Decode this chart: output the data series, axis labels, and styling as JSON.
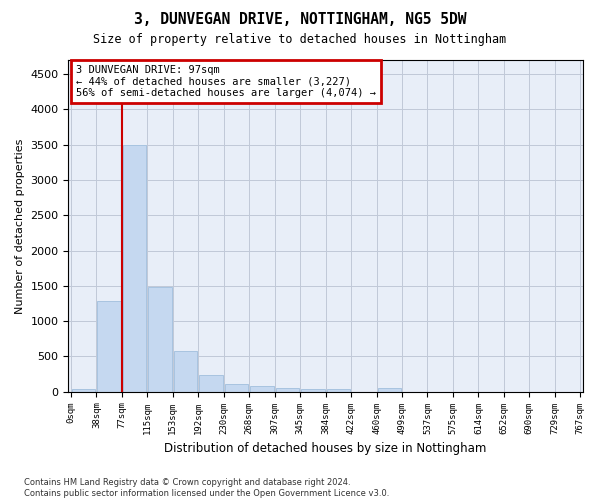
{
  "title": "3, DUNVEGAN DRIVE, NOTTINGHAM, NG5 5DW",
  "subtitle": "Size of property relative to detached houses in Nottingham",
  "xlabel": "Distribution of detached houses by size in Nottingham",
  "ylabel": "Number of detached properties",
  "bar_color": "#c5d8f0",
  "bar_edge_color": "#a8c4e0",
  "grid_color": "#c0c8d8",
  "background_color": "#e8eef8",
  "vline_color": "#cc0000",
  "annotation_text": "3 DUNVEGAN DRIVE: 97sqm\n← 44% of detached houses are smaller (3,227)\n56% of semi-detached houses are larger (4,074) →",
  "annotation_box_edgecolor": "#cc0000",
  "bin_labels": [
    "0sqm",
    "38sqm",
    "77sqm",
    "115sqm",
    "153sqm",
    "192sqm",
    "230sqm",
    "268sqm",
    "307sqm",
    "345sqm",
    "384sqm",
    "422sqm",
    "460sqm",
    "499sqm",
    "537sqm",
    "575sqm",
    "614sqm",
    "652sqm",
    "690sqm",
    "729sqm",
    "767sqm"
  ],
  "bar_heights": [
    40,
    1280,
    3500,
    1480,
    575,
    240,
    115,
    80,
    55,
    45,
    40,
    0,
    55,
    0,
    0,
    0,
    0,
    0,
    0,
    0
  ],
  "ylim": [
    0,
    4700
  ],
  "yticks": [
    0,
    500,
    1000,
    1500,
    2000,
    2500,
    3000,
    3500,
    4000,
    4500
  ],
  "footer_text": "Contains HM Land Registry data © Crown copyright and database right 2024.\nContains public sector information licensed under the Open Government Licence v3.0.",
  "figsize": [
    6.0,
    5.0
  ],
  "dpi": 100
}
